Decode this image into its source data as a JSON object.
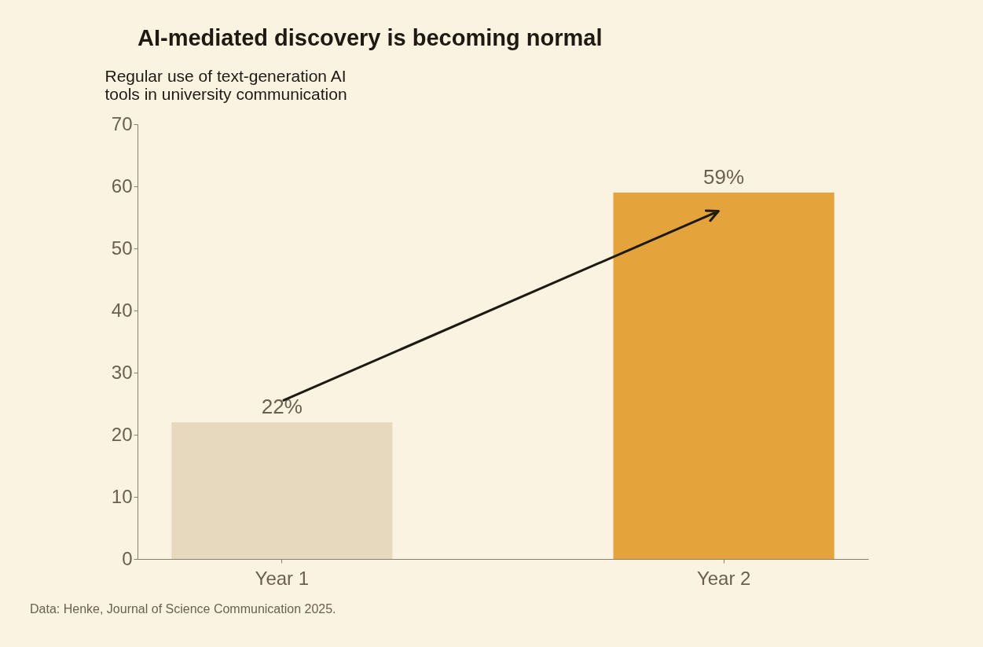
{
  "chart_data": {
    "type": "bar",
    "title": "AI-mediated discovery is becoming normal",
    "ylabel": "Regular use of text-generation AI tools in university communication",
    "categories": [
      "Year 1",
      "Year 2"
    ],
    "values": [
      22,
      59
    ],
    "value_labels": [
      "22%",
      "59%"
    ],
    "colors": [
      "#e7d9bd",
      "#e4a43b"
    ],
    "ylim": [
      0,
      70
    ],
    "yticks": [
      0,
      10,
      20,
      30,
      40,
      50,
      60,
      70
    ],
    "grid": false,
    "legend": false,
    "annotations": [
      "Data: Henke, Journal of Science Communication 2025."
    ]
  }
}
